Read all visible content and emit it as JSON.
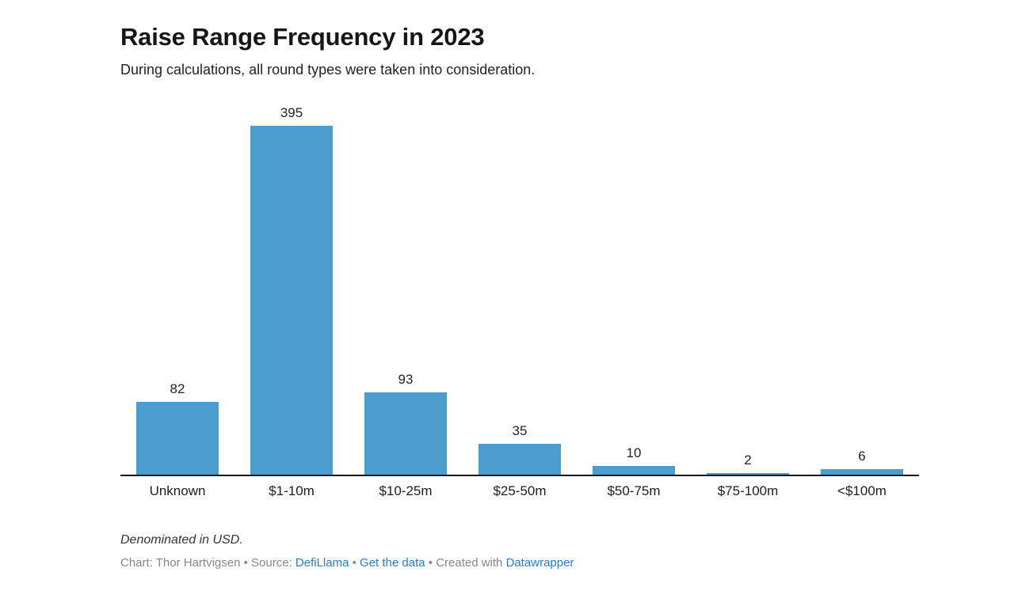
{
  "header": {
    "title": "Raise Range Frequency in 2023",
    "subtitle": "During calculations, all round types were taken into consideration."
  },
  "chart_data": {
    "type": "bar",
    "title": "Raise Range Frequency in 2023",
    "subtitle": "During calculations, all round types were taken into consideration.",
    "categories": [
      "Unknown",
      "$1-10m",
      "$10-25m",
      "$25-50m",
      "$50-75m",
      "$75-100m",
      "<$100m"
    ],
    "values": [
      82,
      395,
      93,
      35,
      10,
      2,
      6
    ],
    "value_labels_shown": true,
    "xlabel": "",
    "ylabel": "",
    "ylim": [
      0,
      395
    ],
    "grid": false,
    "legend_position": "none",
    "bar_color": "#4d9ecd",
    "baseline_color": "#18191c"
  },
  "footer": {
    "note": "Denominated in USD.",
    "attribution": {
      "prefix": "Chart: Thor Hartvigsen • Source: ",
      "source_link": "DefiLlama",
      "sep1": " • ",
      "data_link": "Get the data",
      "sep2": " • ",
      "created_with": "Created with ",
      "tool_link": "Datawrapper"
    }
  },
  "colors": {
    "bar": "#4d9ecd",
    "link": "#287bd9",
    "muted_text": "#868686",
    "text": "#1d1d1d",
    "baseline": "#18191c"
  }
}
